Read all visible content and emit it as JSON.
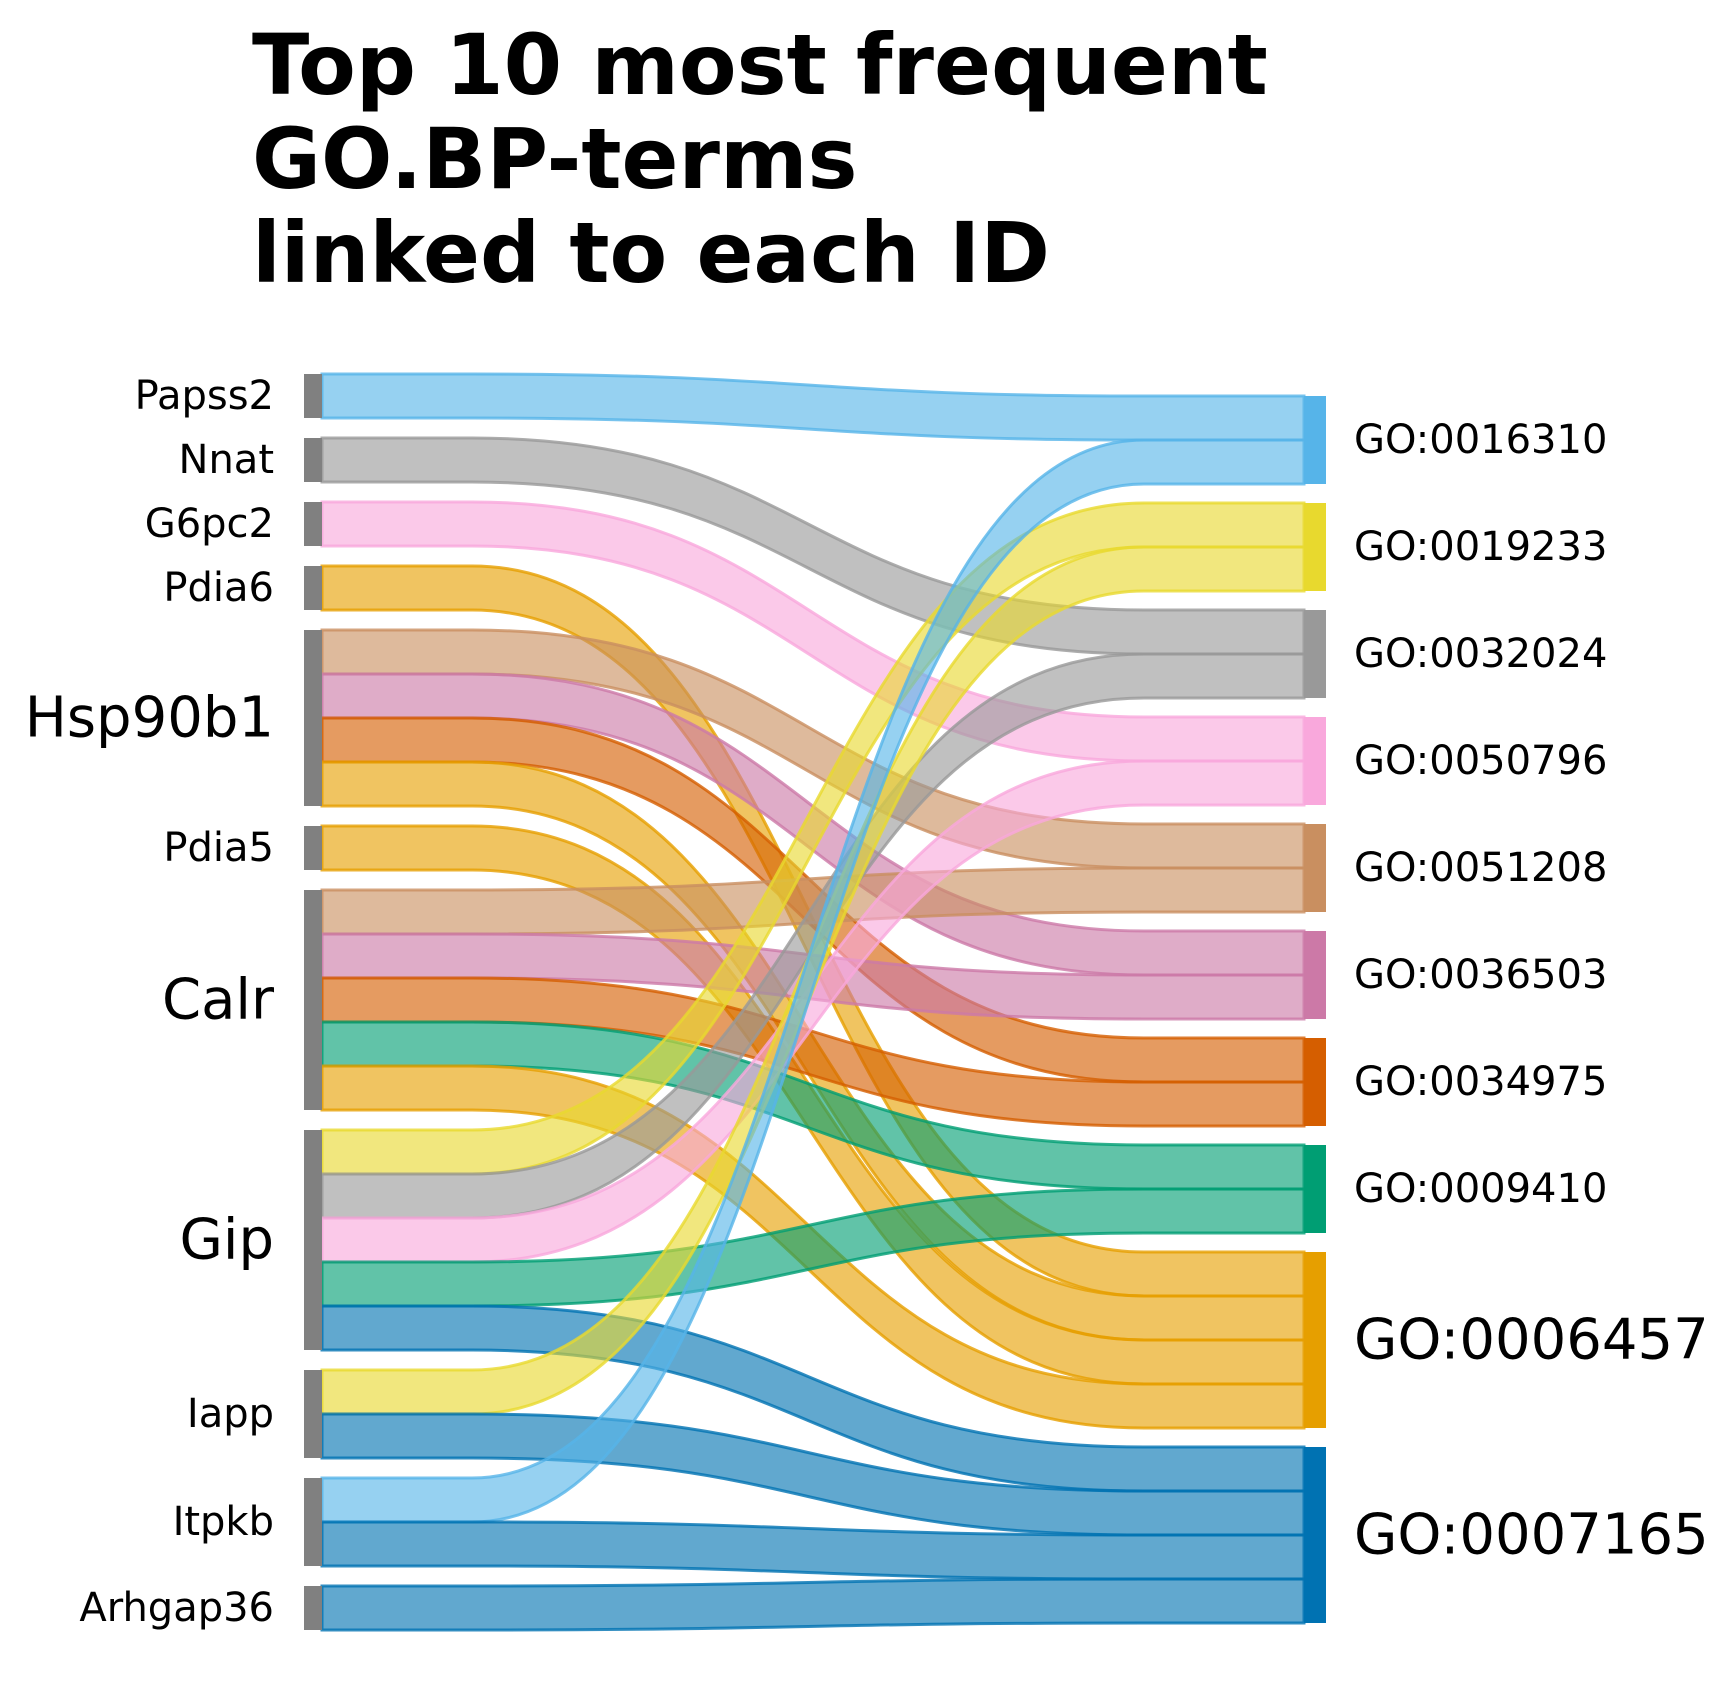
{
  "title": [
    "Top 10 most frequent",
    "GO.BP-terms",
    "linked to each ID"
  ],
  "colors": {
    "source_node": "#808080",
    "terms": {
      "GO:0016310": "#56B4E9",
      "GO:0019233": "#E8D92E",
      "GO:0032024": "#999999",
      "GO:0050796": "#F9A8DC",
      "GO:0051208": "#C98F60",
      "GO:0036503": "#CC79A7",
      "GO:0034975": "#D55E00",
      "GO:0009410": "#009E73",
      "GO:0006457": "#E69F00",
      "GO:0007165": "#0072B2"
    }
  },
  "sources": [
    {
      "id": "Papss2",
      "size": "small"
    },
    {
      "id": "Nnat",
      "size": "small"
    },
    {
      "id": "G6pc2",
      "size": "small"
    },
    {
      "id": "Pdia6",
      "size": "small"
    },
    {
      "id": "Hsp90b1",
      "size": "large"
    },
    {
      "id": "Pdia5",
      "size": "small"
    },
    {
      "id": "Calr",
      "size": "large"
    },
    {
      "id": "Gip",
      "size": "large"
    },
    {
      "id": "Iapp",
      "size": "small"
    },
    {
      "id": "Itpkb",
      "size": "small"
    },
    {
      "id": "Arhgap36",
      "size": "small"
    }
  ],
  "targets": [
    {
      "id": "GO:0016310",
      "size": "small"
    },
    {
      "id": "GO:0019233",
      "size": "small"
    },
    {
      "id": "GO:0032024",
      "size": "small"
    },
    {
      "id": "GO:0050796",
      "size": "small"
    },
    {
      "id": "GO:0051208",
      "size": "small"
    },
    {
      "id": "GO:0036503",
      "size": "small"
    },
    {
      "id": "GO:0034975",
      "size": "small"
    },
    {
      "id": "GO:0009410",
      "size": "small"
    },
    {
      "id": "GO:0006457",
      "size": "large"
    },
    {
      "id": "GO:0007165",
      "size": "large"
    }
  ],
  "links": [
    {
      "source": "Papss2",
      "target": "GO:0016310",
      "value": 1
    },
    {
      "source": "Nnat",
      "target": "GO:0032024",
      "value": 1
    },
    {
      "source": "G6pc2",
      "target": "GO:0050796",
      "value": 1
    },
    {
      "source": "Pdia6",
      "target": "GO:0006457",
      "value": 1
    },
    {
      "source": "Hsp90b1",
      "target": "GO:0051208",
      "value": 1
    },
    {
      "source": "Hsp90b1",
      "target": "GO:0036503",
      "value": 1
    },
    {
      "source": "Hsp90b1",
      "target": "GO:0034975",
      "value": 1
    },
    {
      "source": "Hsp90b1",
      "target": "GO:0006457",
      "value": 1
    },
    {
      "source": "Pdia5",
      "target": "GO:0006457",
      "value": 1
    },
    {
      "source": "Calr",
      "target": "GO:0051208",
      "value": 1
    },
    {
      "source": "Calr",
      "target": "GO:0036503",
      "value": 1
    },
    {
      "source": "Calr",
      "target": "GO:0034975",
      "value": 1
    },
    {
      "source": "Calr",
      "target": "GO:0009410",
      "value": 1
    },
    {
      "source": "Calr",
      "target": "GO:0006457",
      "value": 1
    },
    {
      "source": "Gip",
      "target": "GO:0019233",
      "value": 1
    },
    {
      "source": "Gip",
      "target": "GO:0032024",
      "value": 1
    },
    {
      "source": "Gip",
      "target": "GO:0050796",
      "value": 1
    },
    {
      "source": "Gip",
      "target": "GO:0009410",
      "value": 1
    },
    {
      "source": "Gip",
      "target": "GO:0007165",
      "value": 1
    },
    {
      "source": "Iapp",
      "target": "GO:0019233",
      "value": 1
    },
    {
      "source": "Iapp",
      "target": "GO:0007165",
      "value": 1
    },
    {
      "source": "Itpkb",
      "target": "GO:0016310",
      "value": 1
    },
    {
      "source": "Itpkb",
      "target": "GO:0007165",
      "value": 1
    },
    {
      "source": "Arhgap36",
      "target": "GO:0007165",
      "value": 1
    }
  ]
}
